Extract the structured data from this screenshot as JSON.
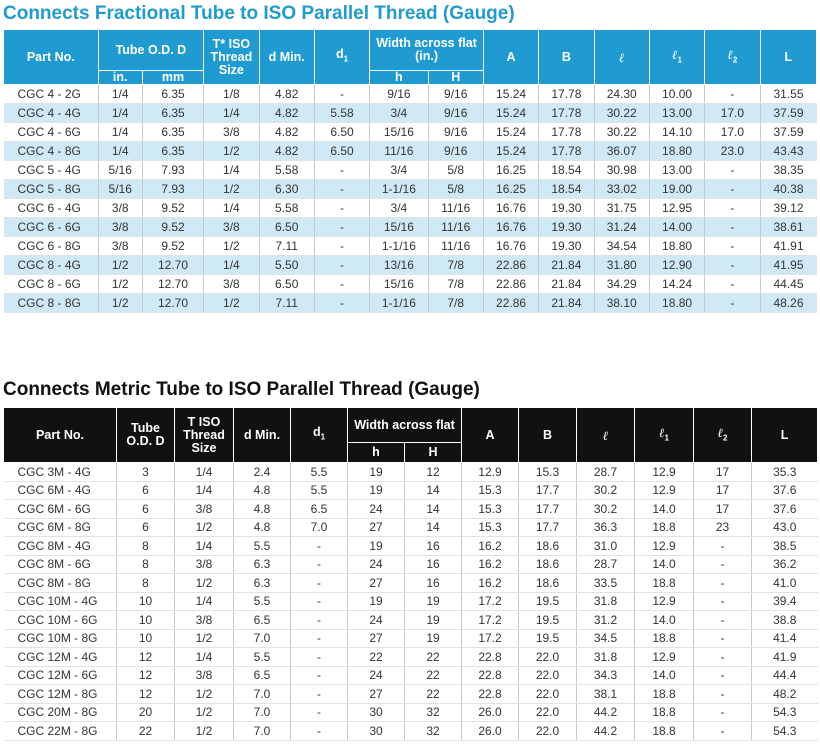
{
  "table1": {
    "title": "Connects Fractional Tube to ISO Parallel Thread (Gauge)",
    "headers": {
      "part_no": "Part No.",
      "tube_od": "Tube O.D. D",
      "t_thread": "T* ISO Thread Size",
      "d_min": "d Min.",
      "d1": "d",
      "d1_sub": "1",
      "width": "Width across flat (in.)",
      "A": "A",
      "B": "B",
      "l": "ℓ",
      "l1": "ℓ",
      "l1_sub": "1",
      "l2": "ℓ",
      "l2_sub": "2",
      "L": "L",
      "in": "in.",
      "mm": "mm",
      "h": "h",
      "H": "H"
    },
    "rows": [
      [
        "CGC 4 - 2G",
        "1/4",
        "6.35",
        "1/8",
        "4.82",
        "-",
        "9/16",
        "9/16",
        "15.24",
        "17.78",
        "24.30",
        "10.00",
        "-",
        "31.55"
      ],
      [
        "CGC 4 - 4G",
        "1/4",
        "6.35",
        "1/4",
        "4.82",
        "5.58",
        "3/4",
        "9/16",
        "15.24",
        "17.78",
        "30.22",
        "13.00",
        "17.0",
        "37.59"
      ],
      [
        "CGC 4 - 6G",
        "1/4",
        "6.35",
        "3/8",
        "4.82",
        "6.50",
        "15/16",
        "9/16",
        "15.24",
        "17.78",
        "30.22",
        "14.10",
        "17.0",
        "37.59"
      ],
      [
        "CGC 4 - 8G",
        "1/4",
        "6.35",
        "1/2",
        "4.82",
        "6.50",
        "11/16",
        "9/16",
        "15.24",
        "17.78",
        "36.07",
        "18.80",
        "23.0",
        "43.43"
      ],
      [
        "CGC 5 - 4G",
        "5/16",
        "7.93",
        "1/4",
        "5.58",
        "-",
        "3/4",
        "5/8",
        "16.25",
        "18.54",
        "30.98",
        "13.00",
        "-",
        "38.35"
      ],
      [
        "CGC 5 - 8G",
        "5/16",
        "7.93",
        "1/2",
        "6.30",
        "-",
        "1-1/16",
        "5/8",
        "16.25",
        "18.54",
        "33.02",
        "19.00",
        "-",
        "40.38"
      ],
      [
        "CGC 6 - 4G",
        "3/8",
        "9.52",
        "1/4",
        "5.58",
        "-",
        "3/4",
        "11/16",
        "16.76",
        "19.30",
        "31.75",
        "12.95",
        "-",
        "39.12"
      ],
      [
        "CGC 6 - 6G",
        "3/8",
        "9.52",
        "3/8",
        "6.50",
        "-",
        "15/16",
        "11/16",
        "16.76",
        "19.30",
        "31.24",
        "14.00",
        "-",
        "38.61"
      ],
      [
        "CGC 6 - 8G",
        "3/8",
        "9.52",
        "1/2",
        "7.11",
        "-",
        "1-1/16",
        "11/16",
        "16.76",
        "19.30",
        "34.54",
        "18.80",
        "-",
        "41.91"
      ],
      [
        "CGC 8 - 4G",
        "1/2",
        "12.70",
        "1/4",
        "5.50",
        "-",
        "13/16",
        "7/8",
        "22.86",
        "21.84",
        "31.80",
        "12.90",
        "-",
        "41.95"
      ],
      [
        "CGC 8 - 6G",
        "1/2",
        "12.70",
        "3/8",
        "6.50",
        "-",
        "15/16",
        "7/8",
        "22.86",
        "21.84",
        "34.29",
        "14.24",
        "-",
        "44.45"
      ],
      [
        "CGC 8 - 8G",
        "1/2",
        "12.70",
        "1/2",
        "7.11",
        "-",
        "1-1/16",
        "7/8",
        "22.86",
        "21.84",
        "38.10",
        "18.80",
        "-",
        "48.26"
      ]
    ]
  },
  "table2": {
    "title": "Connects Metric Tube to ISO Parallel Thread (Gauge)",
    "headers": {
      "part_no": "Part No.",
      "tube_od": "Tube O.D. D",
      "t_thread": "T ISO Thread Size",
      "d_min": "d Min.",
      "d1": "d",
      "d1_sub": "1",
      "width": "Width across flat",
      "A": "A",
      "B": "B",
      "l": "ℓ",
      "l1": "ℓ",
      "l1_sub": "1",
      "l2": "ℓ",
      "l2_sub": "2",
      "L": "L",
      "h": "h",
      "H": "H"
    },
    "rows": [
      [
        "CGC  3M - 4G",
        "3",
        "1/4",
        "2.4",
        "5.5",
        "19",
        "12",
        "12.9",
        "15.3",
        "28.7",
        "12.9",
        "17",
        "35.3"
      ],
      [
        "CGC  6M - 4G",
        "6",
        "1/4",
        "4.8",
        "5.5",
        "19",
        "14",
        "15.3",
        "17.7",
        "30.2",
        "12.9",
        "17",
        "37.6"
      ],
      [
        "CGC  6M - 6G",
        "6",
        "3/8",
        "4.8",
        "6.5",
        "24",
        "14",
        "15.3",
        "17.7",
        "30.2",
        "14.0",
        "17",
        "37.6"
      ],
      [
        "CGC  6M - 8G",
        "6",
        "1/2",
        "4.8",
        "7.0",
        "27",
        "14",
        "15.3",
        "17.7",
        "36.3",
        "18.8",
        "23",
        "43.0"
      ],
      [
        "CGC  8M - 4G",
        "8",
        "1/4",
        "5.5",
        "-",
        "19",
        "16",
        "16.2",
        "18.6",
        "31.0",
        "12.9",
        "-",
        "38.5"
      ],
      [
        "CGC  8M - 6G",
        "8",
        "3/8",
        "6.3",
        "-",
        "24",
        "16",
        "16.2",
        "18.6",
        "28.7",
        "14.0",
        "-",
        "36.2"
      ],
      [
        "CGC  8M - 8G",
        "8",
        "1/2",
        "6.3",
        "-",
        "27",
        "16",
        "16.2",
        "18.6",
        "33.5",
        "18.8",
        "-",
        "41.0"
      ],
      [
        "CGC 10M - 4G",
        "10",
        "1/4",
        "5.5",
        "-",
        "19",
        "19",
        "17.2",
        "19.5",
        "31.8",
        "12.9",
        "-",
        "39.4"
      ],
      [
        "CGC 10M - 6G",
        "10",
        "3/8",
        "6.5",
        "-",
        "24",
        "19",
        "17.2",
        "19.5",
        "31.2",
        "14.0",
        "-",
        "38.8"
      ],
      [
        "CGC 10M - 8G",
        "10",
        "1/2",
        "7.0",
        "-",
        "27",
        "19",
        "17.2",
        "19.5",
        "34.5",
        "18.8",
        "-",
        "41.4"
      ],
      [
        "CGC 12M - 4G",
        "12",
        "1/4",
        "5.5",
        "-",
        "22",
        "22",
        "22.8",
        "22.0",
        "31.8",
        "12.9",
        "-",
        "41.9"
      ],
      [
        "CGC 12M - 6G",
        "12",
        "3/8",
        "6.5",
        "-",
        "24",
        "22",
        "22.8",
        "22.0",
        "34.3",
        "14.0",
        "-",
        "44.4"
      ],
      [
        "CGC 12M - 8G",
        "12",
        "1/2",
        "7.0",
        "-",
        "27",
        "22",
        "22.8",
        "22.0",
        "38.1",
        "18.8",
        "-",
        "48.2"
      ],
      [
        "CGC 20M - 8G",
        "20",
        "1/2",
        "7.0",
        "-",
        "30",
        "32",
        "26.0",
        "22.0",
        "44.2",
        "18.8",
        "-",
        "54.3"
      ],
      [
        "CGC 22M - 8G",
        "22",
        "1/2",
        "7.0",
        "-",
        "30",
        "32",
        "26.0",
        "22.0",
        "44.2",
        "18.8",
        "-",
        "54.3"
      ]
    ]
  }
}
